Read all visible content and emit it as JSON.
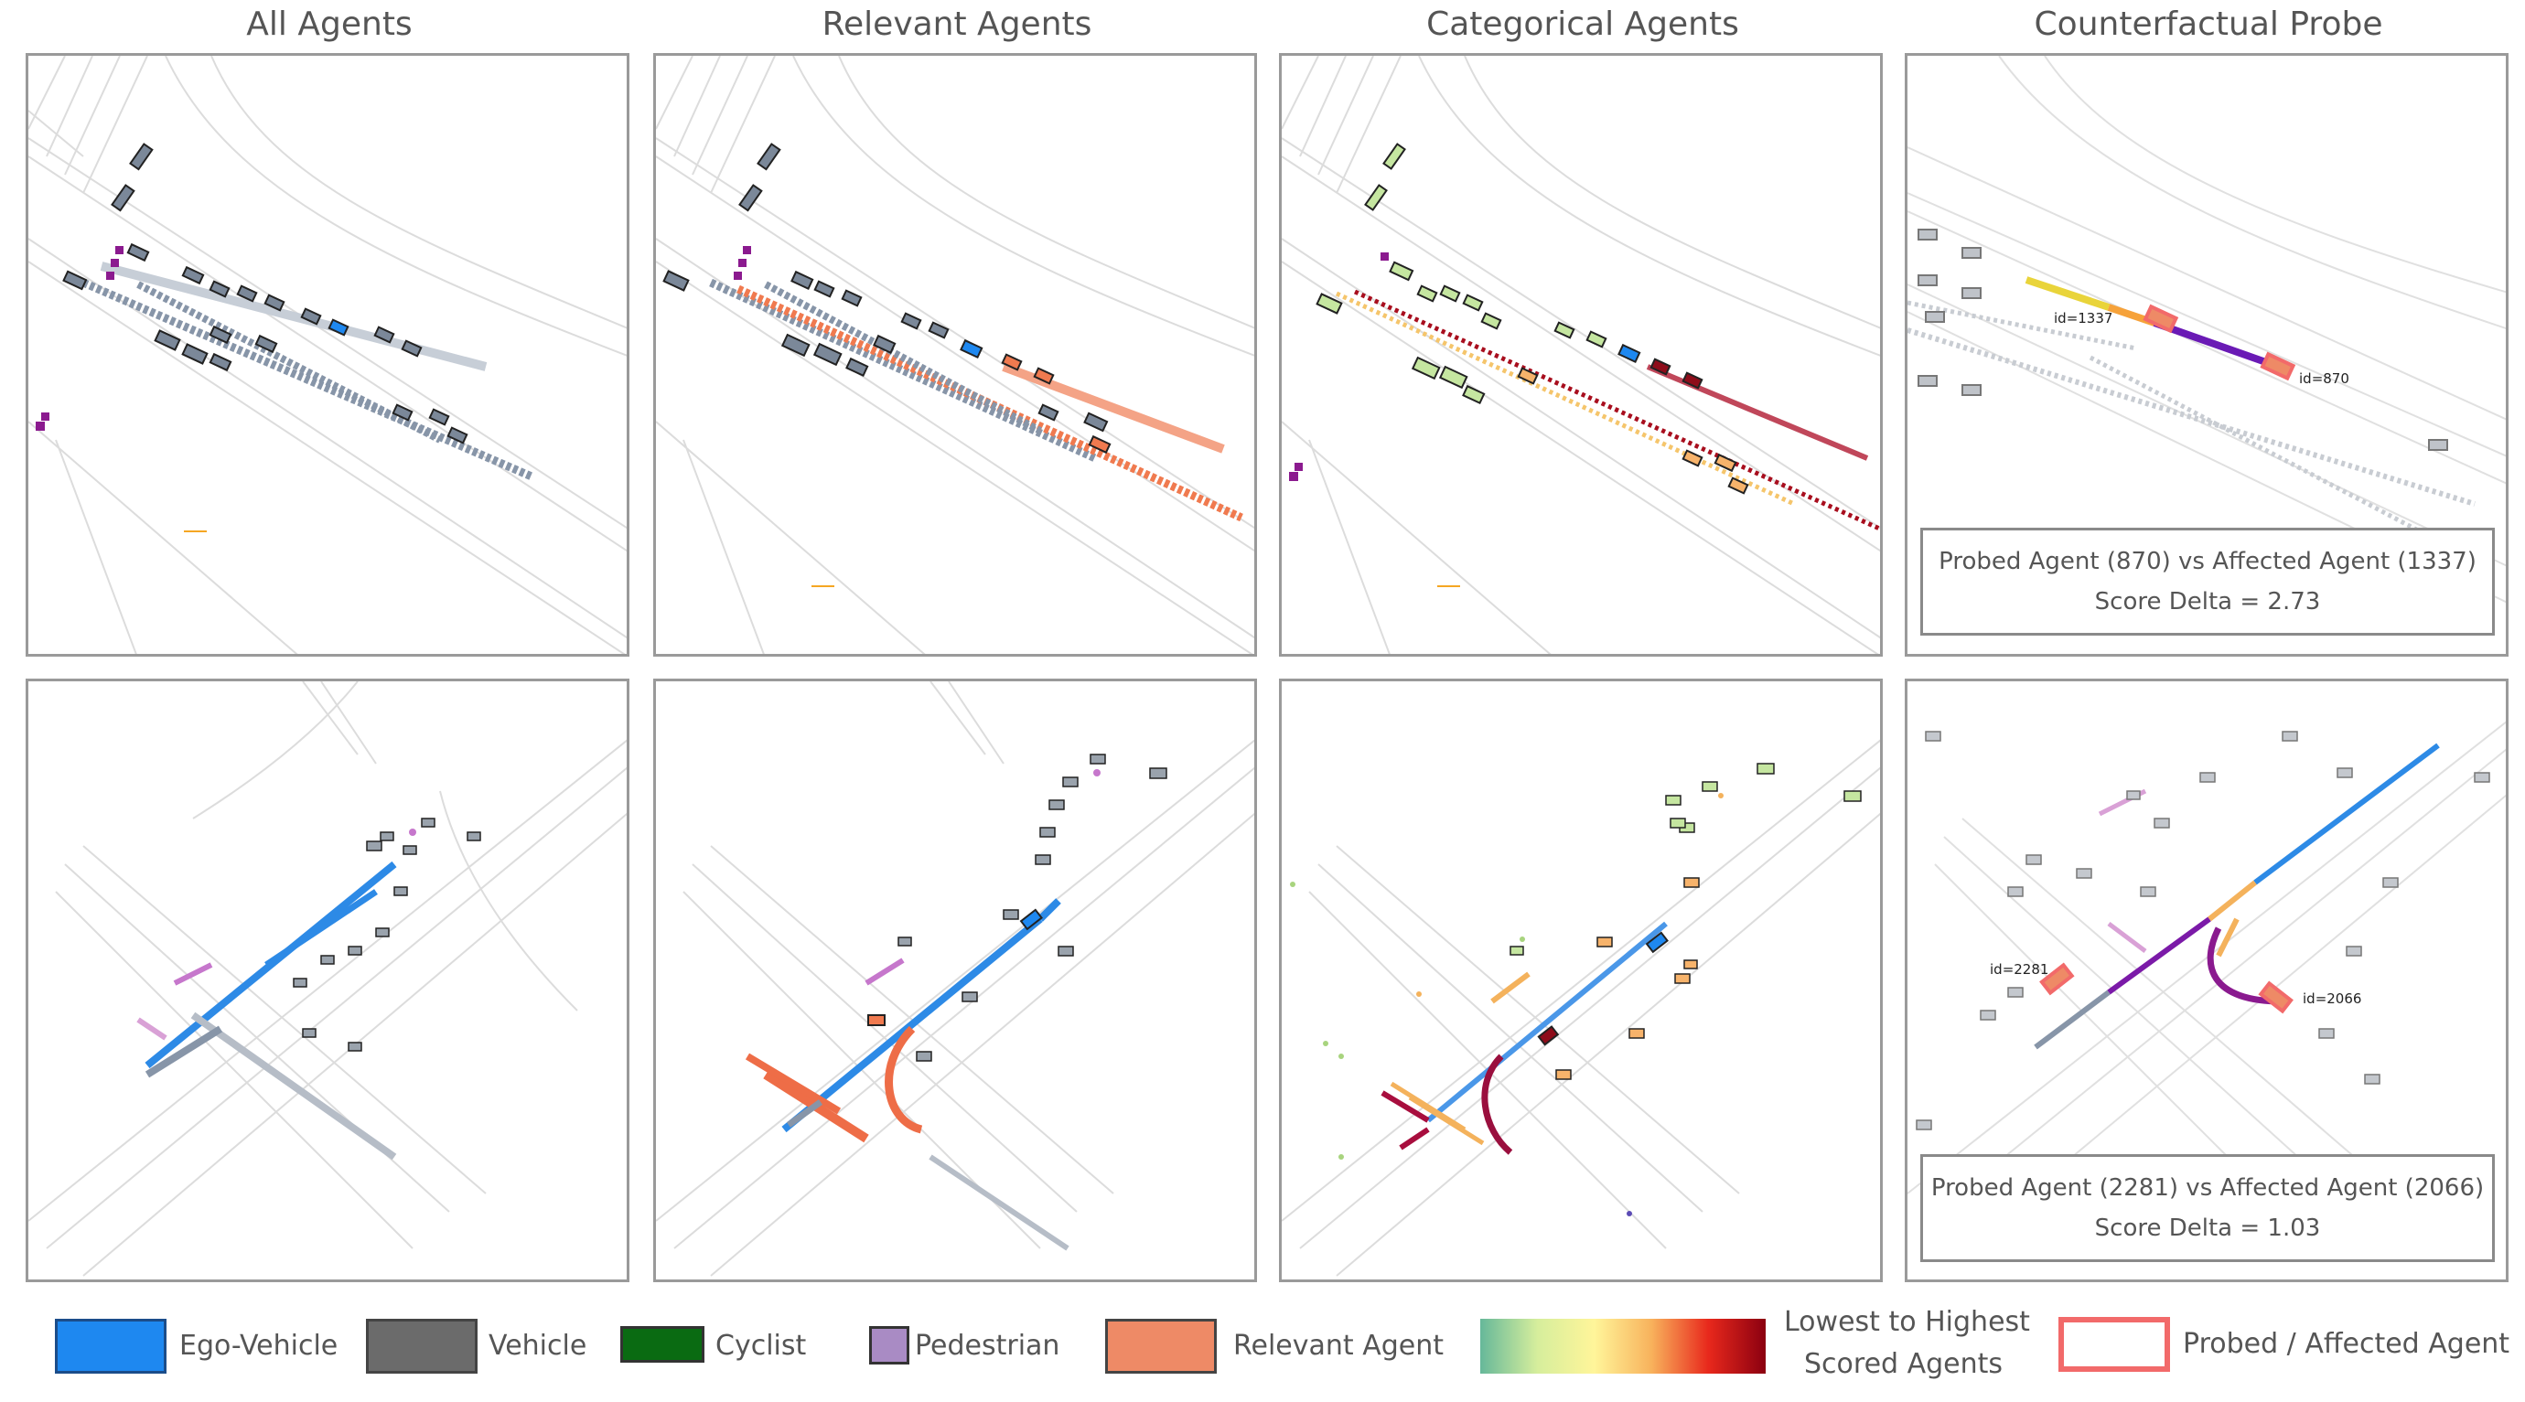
{
  "columns": [
    {
      "title": "All Agents"
    },
    {
      "title": "Relevant Agents"
    },
    {
      "title": "Categorical Agents"
    },
    {
      "title": "Counterfactual Probe"
    }
  ],
  "probes": {
    "top": {
      "line1": "Probed Agent (870) vs Affected Agent (1337)",
      "line2": "Score Delta = 2.73",
      "probed_id": "id=870",
      "affected_id": "id=1337"
    },
    "bottom": {
      "line1": "Probed Agent (2281) vs Affected Agent (2066)",
      "line2": "Score Delta = 1.03",
      "probed_id": "id=2281",
      "affected_id": "id=2066"
    }
  },
  "legend": {
    "ego": {
      "label": "Ego-Vehicle",
      "color": "#1e88f0"
    },
    "vehicle": {
      "label": "Vehicle",
      "color": "#6b6b6b"
    },
    "cyclist": {
      "label": "Cyclist",
      "color": "#0a6b12"
    },
    "pedestrian": {
      "label": "Pedestrian",
      "color": "#a98bc4"
    },
    "relevant": {
      "label": "Relevant Agent",
      "color": "#ee8a66"
    },
    "scale": {
      "line1": "Lowest to Highest",
      "line2": "Scored Agents"
    },
    "probed": {
      "label": "Probed / Affected Agent",
      "color": "#f26a6a"
    }
  }
}
